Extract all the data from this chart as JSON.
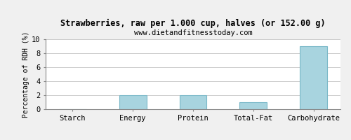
{
  "title": "Strawberries, raw per 1.000 cup, halves (or 152.00 g)",
  "subtitle": "www.dietandfitnesstoday.com",
  "categories": [
    "Starch",
    "Energy",
    "Protein",
    "Total-Fat",
    "Carbohydrate"
  ],
  "values": [
    0,
    2.0,
    2.0,
    1.0,
    9.0
  ],
  "bar_color": "#a8d4df",
  "bar_edge_color": "#7ab8c8",
  "ylabel": "Percentage of RDH (%)",
  "ylim": [
    0,
    10
  ],
  "yticks": [
    0,
    2,
    4,
    6,
    8,
    10
  ],
  "background_color": "#f0f0f0",
  "plot_bg_color": "#ffffff",
  "title_fontsize": 8.5,
  "subtitle_fontsize": 7.5,
  "tick_fontsize": 7.5,
  "ylabel_fontsize": 7,
  "grid_color": "#cccccc",
  "bar_width": 0.45
}
